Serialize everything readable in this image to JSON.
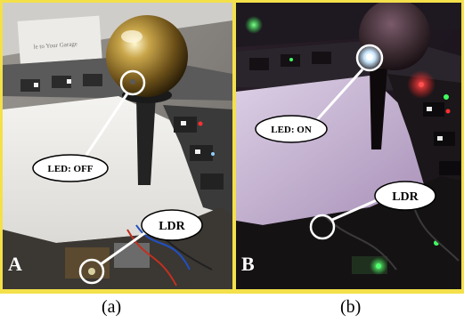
{
  "panels": [
    {
      "corner_letter": "A",
      "caption": "(a)",
      "led_label": "LED: OFF",
      "ldr_label": "LDR",
      "card_text": "le to Your Garage"
    },
    {
      "corner_letter": "B",
      "caption": "(b)",
      "led_label": "LED: ON",
      "ldr_label": "LDR"
    }
  ],
  "colors": {
    "border": "#f3e04a",
    "callout_line": "#ffffff",
    "bubble_fill": "#ffffff",
    "bubble_text": "#000000",
    "led_on_glow": "#d8f0ff",
    "red_led": "#ff3030",
    "green_led": "#40ff60"
  }
}
